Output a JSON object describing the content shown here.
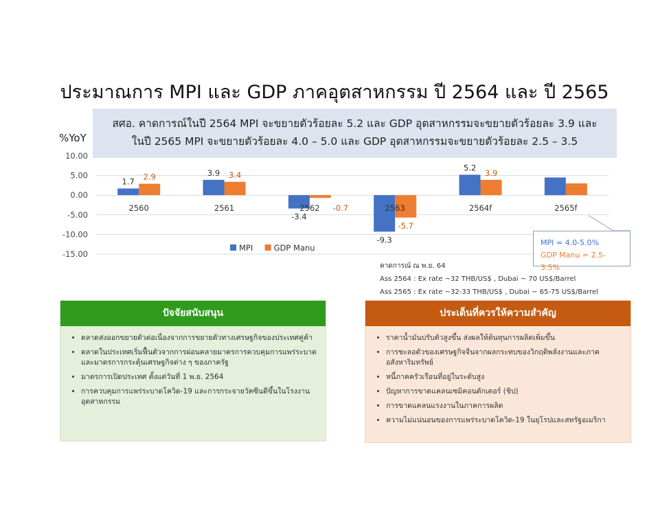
{
  "title": "ประมาณการ MPI และ GDP ภาคอุตสาหกรรม ปี 2564 และ ปี 2565",
  "note": {
    "line1": "สศอ. คาดการณ์ในปี 2564 MPI จะขยายตัวร้อยละ 5.2 และ GDP อุตสาหกรรมจะขยายตัวร้อยละ 3.9 และ",
    "line2": "ในปี 2565 MPI จะขยายตัวร้อยละ 4.0 – 5.0 และ GDP อุตสาหกรรมจะขยายตัวร้อยละ 2.5 – 3.5"
  },
  "chart_data": {
    "type": "bar",
    "ylabel": "%YoY",
    "ylim": [
      -15,
      10
    ],
    "yticks": [
      "10.00",
      "5.00",
      "0.00",
      "-5.00",
      "-10.00",
      "-15.00"
    ],
    "ytick_values": [
      10,
      5,
      0,
      -5,
      -10,
      -15
    ],
    "categories": [
      "2560",
      "2561",
      "2562",
      "2563",
      "2564f",
      "2565f"
    ],
    "series": [
      {
        "name": "MPI",
        "color": "#4472c4",
        "values": [
          1.7,
          3.9,
          -3.4,
          -9.3,
          5.2,
          4.5
        ],
        "labels": [
          "1.7",
          "3.9",
          "-3.4",
          "-9.3",
          "5.2",
          ""
        ]
      },
      {
        "name": "GDP Manu",
        "color": "#ed7d31",
        "values": [
          2.9,
          3.4,
          -0.7,
          -5.7,
          3.9,
          3.0
        ],
        "labels": [
          "2.9",
          "3.4",
          "-0.7",
          "-5.7",
          "3.9",
          ""
        ]
      }
    ],
    "legend_position": "bottom",
    "grid": true
  },
  "callout": {
    "mpi": "MPI = 4.0-5.0%",
    "gdp": "GDP Manu = 2.5-3.5%"
  },
  "assumptions": {
    "line1": "คาดการณ์ ณ พ.ย. 64",
    "line2": "Ass 2564 : Ex rate ~32 THB/US$ , Dubai ~ 70 US$/Barrel",
    "line3": "Ass 2565 : Ex rate ~32-33 THB/US$ , Dubai ~ 65-75 US$/Barrel"
  },
  "support": {
    "heading": "ปัจจัยสนับสนุน",
    "items": [
      "ตลาดส่งออกขยายตัวต่อเนื่องจากการขยายตัวทางเศรษฐกิจของประเทศคู่ค้า",
      "ตลาดในประเทศเริ่มฟื้นตัวจากการผ่อนคลายมาตรการควบคุมการแพร่ระบาดและมาตรการกระตุ้นเศรษฐกิจต่าง ๆ ของภาครัฐ",
      "มาตรการเปิดประเทศ ตั้งแต่วันที่ 1 พ.ย. 2564",
      "การควบคุมการแพร่ระบาดโควิด-19 และการกระจายวัคซีนดีขึ้นในโรงงานอุตสาหกรรม"
    ]
  },
  "concerns": {
    "heading": "ประเด็นที่ควรให้ความสำคัญ",
    "items": [
      "ราคาน้ำมันปรับตัวสูงขึ้น ส่งผลให้ต้นทุนการผลิตเพิ่มขึ้น",
      "การชะลอตัวของเศรษฐกิจจีนจากผลกระทบของวิกฤติพลังงานและภาคอสังหาริมทรัพย์",
      "หนี้ภาคครัวเรือนที่อยู่ในระดับสูง",
      "ปัญหาการขาดแคลนเซมิคอนดักเตอร์ (ชิป)",
      "การขาดแคลนแรงงานในภาคการผลิต",
      "ความไม่แน่นอนของการแพร่ระบาดโควิด-19 ในยุโรปและสหรัฐอเมริกา"
    ]
  }
}
